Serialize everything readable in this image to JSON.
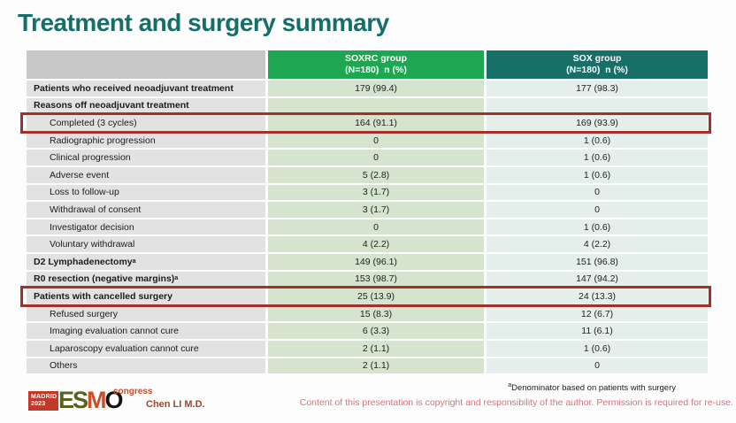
{
  "slide": {
    "title": "Treatment and surgery summary",
    "author": "Chen LI M.D.",
    "footnote_marker": "a",
    "footnote": "Denominator based on patients with surgery",
    "copyright": "Content of this presentation is copyright and responsibility of the author.  Permission is required for re-use."
  },
  "logo": {
    "location": "MADRID",
    "year": "2023",
    "letters": [
      "E",
      "S",
      "M",
      "O"
    ],
    "suffix": "congress"
  },
  "table": {
    "header": {
      "soxrc_line1": "SOXRC group",
      "soxrc_line2": "(N=180)  n (%)",
      "sox_line1": "SOX group",
      "sox_line2": "(N=180)  n (%)"
    },
    "rows": [
      {
        "label": "Patients who received neoadjuvant treatment",
        "soxrc": "179 (99.4)",
        "sox": "177 (98.3)",
        "bold": true,
        "indent": false,
        "highlight": false
      },
      {
        "label": "Reasons off neoadjuvant treatment",
        "soxrc": "",
        "sox": "",
        "bold": true,
        "indent": false,
        "highlight": false
      },
      {
        "label": "Completed (3 cycles)",
        "soxrc": "164 (91.1)",
        "sox": "169 (93.9)",
        "bold": false,
        "indent": true,
        "highlight": true
      },
      {
        "label": "Radiographic progression",
        "soxrc": "0",
        "sox": "1 (0.6)",
        "bold": false,
        "indent": true,
        "highlight": false
      },
      {
        "label": "Clinical progression",
        "soxrc": "0",
        "sox": "1 (0.6)",
        "bold": false,
        "indent": true,
        "highlight": false
      },
      {
        "label": "Adverse event",
        "soxrc": "5 (2.8)",
        "sox": "1 (0.6)",
        "bold": false,
        "indent": true,
        "highlight": false
      },
      {
        "label": "Loss to follow-up",
        "soxrc": "3 (1.7)",
        "sox": "0",
        "bold": false,
        "indent": true,
        "highlight": false
      },
      {
        "label": "Withdrawal of consent",
        "soxrc": "3 (1.7)",
        "sox": "0",
        "bold": false,
        "indent": true,
        "highlight": false
      },
      {
        "label": "Investigator decision",
        "soxrc": "0",
        "sox": "1 (0.6)",
        "bold": false,
        "indent": true,
        "highlight": false
      },
      {
        "label": "Voluntary withdrawal",
        "soxrc": "4 (2.2)",
        "sox": "4 (2.2)",
        "bold": false,
        "indent": true,
        "highlight": false
      },
      {
        "label": "D2 Lymphadenectomy",
        "sup": "a",
        "soxrc": "149 (96.1)",
        "sox": "151 (96.8)",
        "bold": true,
        "indent": false,
        "highlight": false
      },
      {
        "label": "R0 resection (negative margins)",
        "sup": "a",
        "soxrc": "153 (98.7)",
        "sox": "147 (94.2)",
        "bold": true,
        "indent": false,
        "highlight": false
      },
      {
        "label": "Patients with cancelled surgery",
        "soxrc": "25 (13.9)",
        "sox": "24 (13.3)",
        "bold": true,
        "indent": false,
        "highlight": true
      },
      {
        "label": "Refused surgery",
        "soxrc": "15 (8.3)",
        "sox": "12 (6.7)",
        "bold": false,
        "indent": true,
        "highlight": false
      },
      {
        "label": "Imaging evaluation cannot cure",
        "soxrc": "6 (3.3)",
        "sox": "11 (6.1)",
        "bold": false,
        "indent": true,
        "highlight": false
      },
      {
        "label": "Laparoscopy evaluation cannot cure",
        "soxrc": "2 (1.1)",
        "sox": "1 (0.6)",
        "bold": false,
        "indent": true,
        "highlight": false
      },
      {
        "label": "Others",
        "soxrc": "2 (1.1)",
        "sox": "0",
        "bold": false,
        "indent": true,
        "highlight": false
      }
    ]
  },
  "colors": {
    "title": "#156f68",
    "header_blank": "#c7c7c7",
    "header_soxrc": "#1ea751",
    "header_sox": "#186f68",
    "label_cell": "#e2e2e2",
    "soxrc_cell": "#d5e4ce",
    "sox_cell": "#e4efeb",
    "highlight_border": "#a52f2a",
    "author_text": "#a0452e",
    "copyright_text": "#d9707a"
  }
}
